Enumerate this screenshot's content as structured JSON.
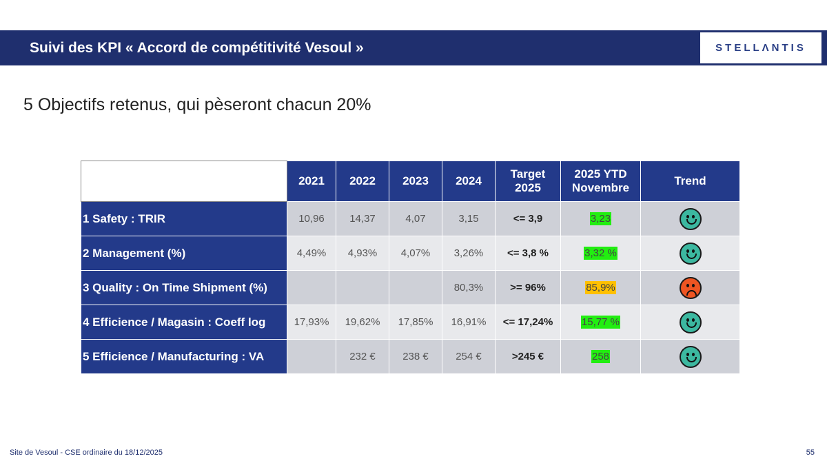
{
  "header": {
    "title": "Suivi des KPI « Accord de compétitivité  Vesoul »",
    "logo": "STELLANTIS"
  },
  "subtitle": "5 Objectifs retenus, qui pèseront chacun 20%",
  "table": {
    "headers": [
      "",
      "2021",
      "2022",
      "2023",
      "2024",
      "Target\n2025",
      "2025 YTD\nNovembre",
      "Trend"
    ],
    "header_target": [
      "Target",
      "2025"
    ],
    "header_ytd": [
      "2025 YTD",
      "Novembre"
    ],
    "rows": [
      {
        "label": "1 Safety : TRIR",
        "values": [
          "10,96",
          "14,37",
          "4,07",
          "3,15"
        ],
        "target": "<= 3,9",
        "ytd": "3,23",
        "ytd_color": "#22ee11",
        "trend": "happy",
        "trend_color": "#3cb8a0"
      },
      {
        "label": "2 Management (%)",
        "values": [
          "4,49%",
          "4,93%",
          "4,07%",
          "3,26%"
        ],
        "target": "<= 3,8 %",
        "ytd": "3,32 %",
        "ytd_color": "#22ee11",
        "trend": "happy",
        "trend_color": "#3cb8a0"
      },
      {
        "label": "3 Quality : On Time Shipment (%)",
        "values": [
          "",
          "",
          "",
          "80,3%"
        ],
        "target": ">= 96%",
        "ytd": "85,9%",
        "ytd_color": "#ffc000",
        "trend": "sad",
        "trend_color": "#ee5522"
      },
      {
        "label": "4 Efficience / Magasin : Coeff log",
        "values": [
          "17,93%",
          "19,62%",
          "17,85%",
          "16,91%"
        ],
        "target": "<= 17,24%",
        "ytd": "15,77 %",
        "ytd_color": "#22ee11",
        "trend": "happy",
        "trend_color": "#3cb8a0"
      },
      {
        "label": "5 Efficience / Manufacturing : VA",
        "values": [
          "",
          "232 €",
          "238 €",
          "254 €"
        ],
        "target": ">245 €",
        "ytd": "258",
        "ytd_color": "#22ee11",
        "trend": "happy",
        "trend_color": "#3cb8a0"
      }
    ]
  },
  "footer": {
    "text": "Site de Vesoul - CSE ordinaire du 18/12/2025",
    "page": "55"
  }
}
